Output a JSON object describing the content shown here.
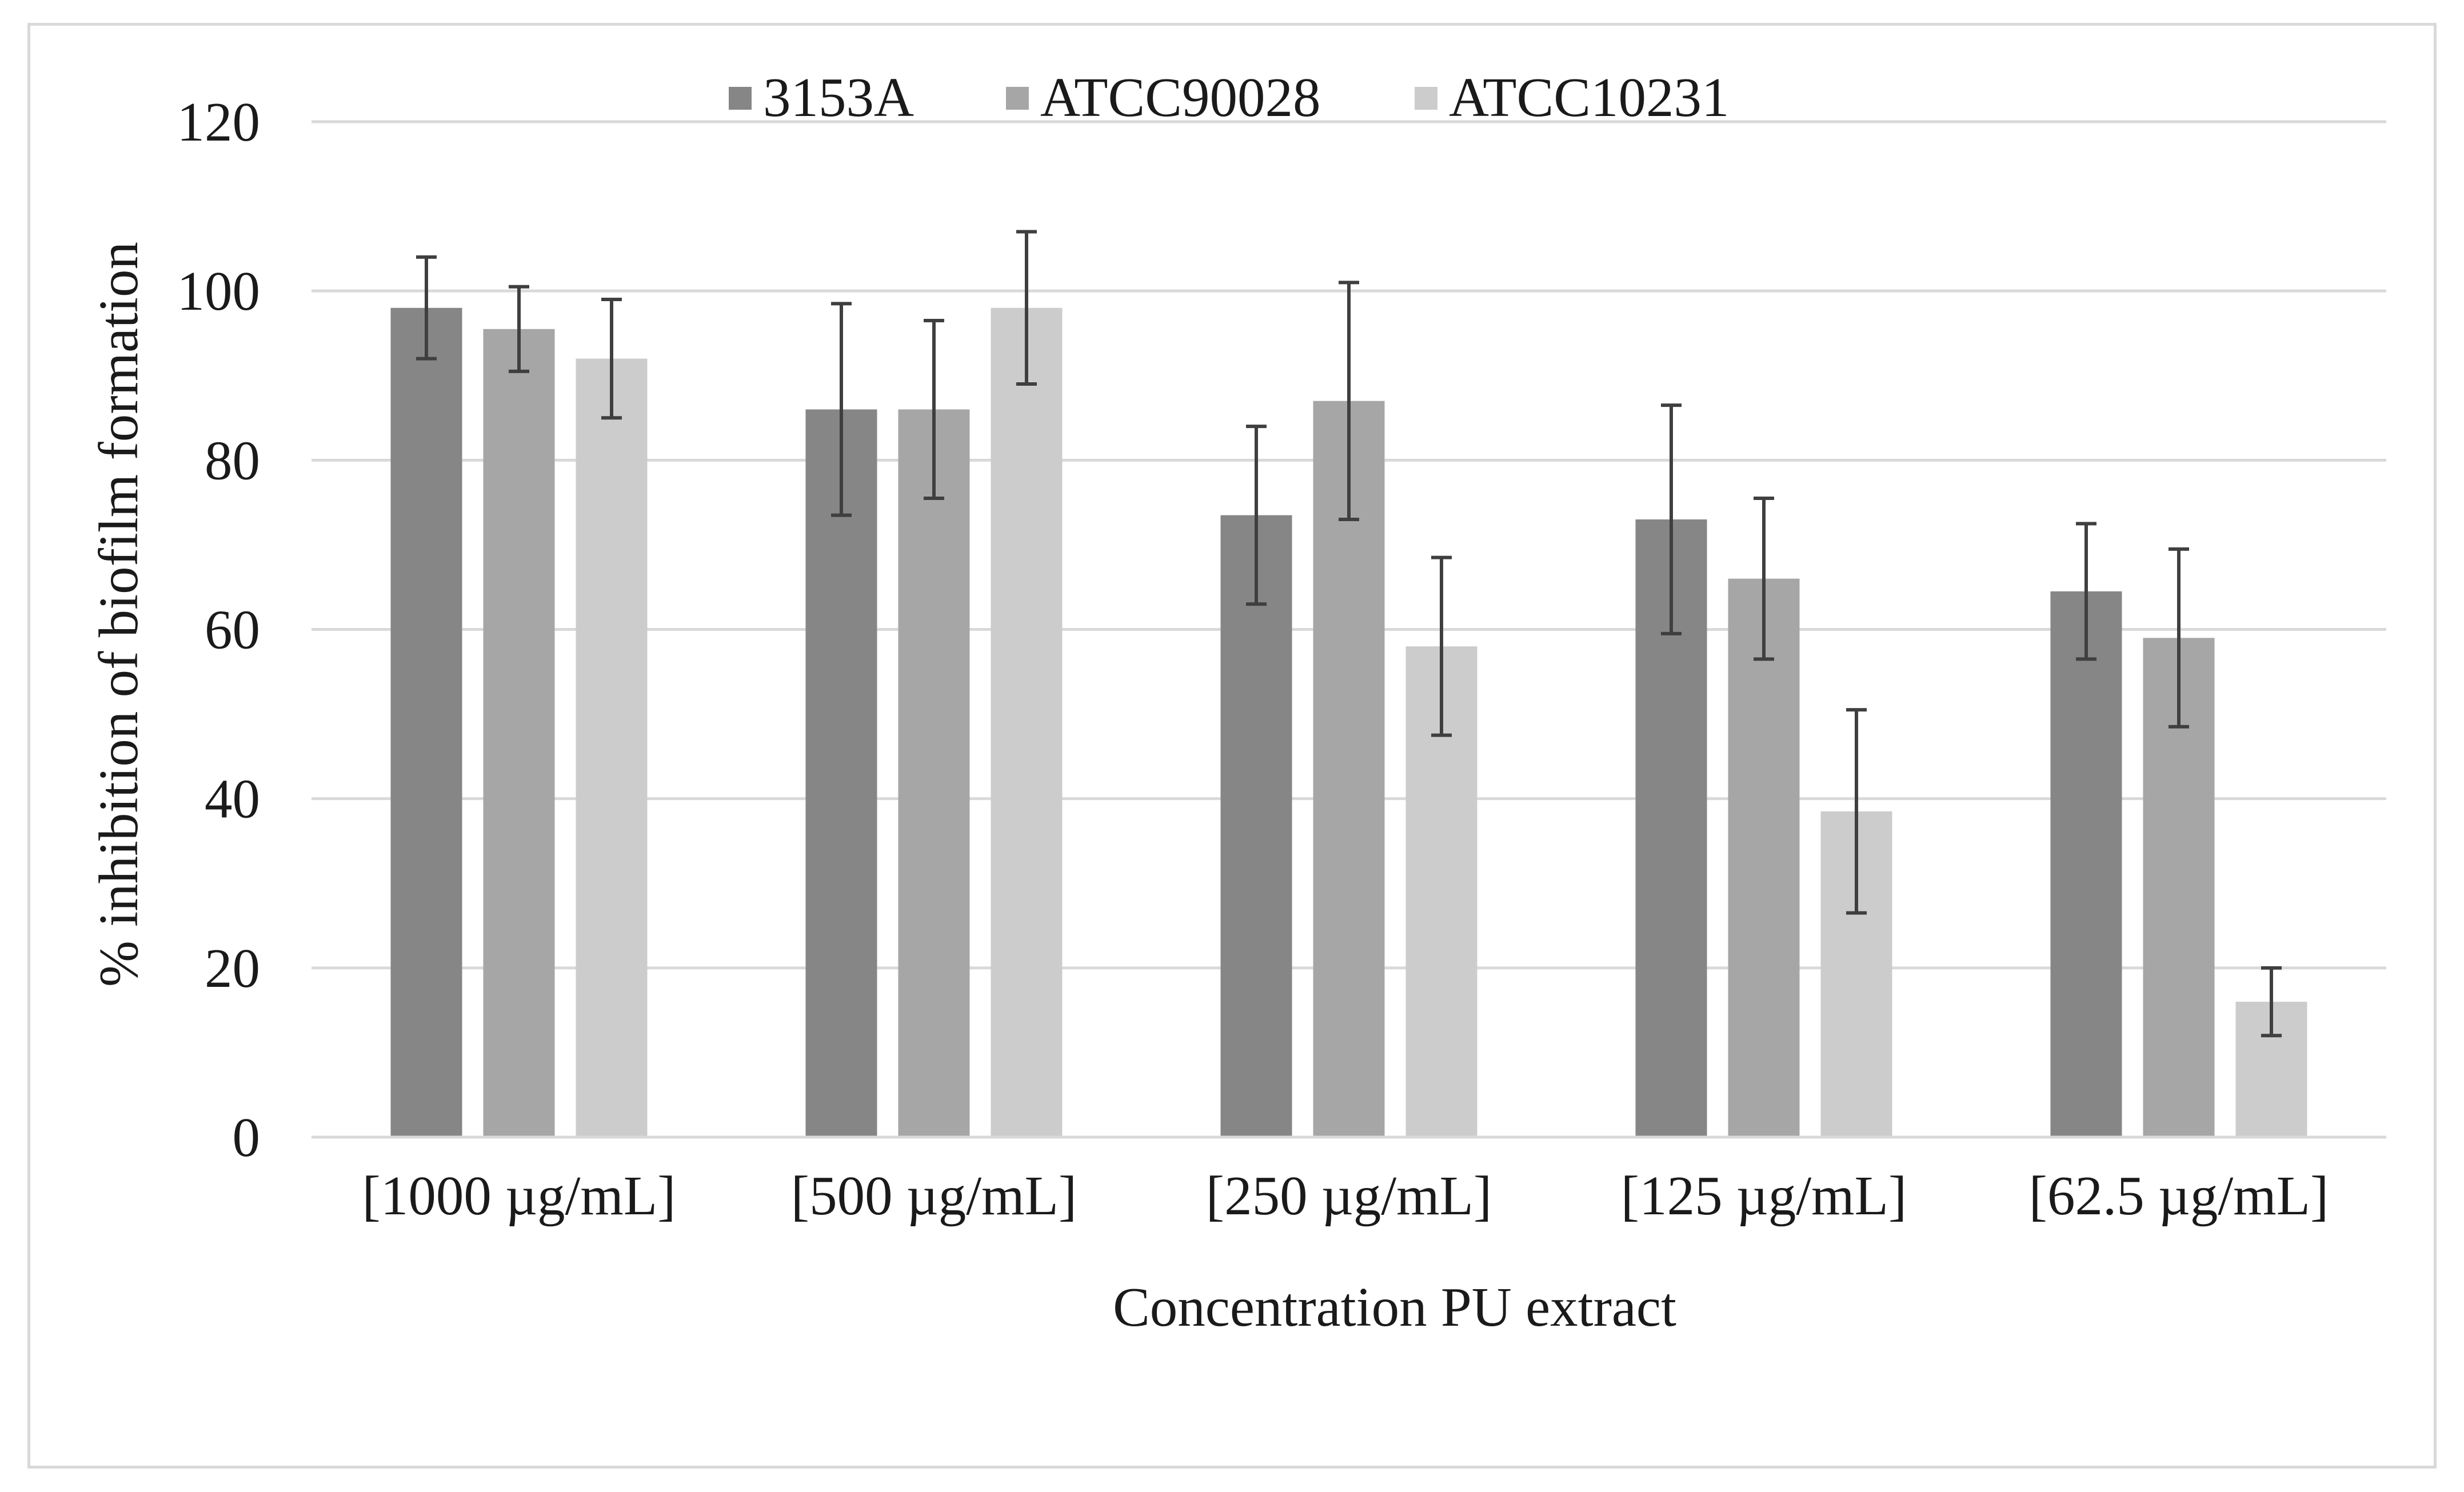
{
  "chart_data": {
    "type": "bar",
    "title": "",
    "xlabel": "Concentration PU extract",
    "ylabel": "% inhibition of biofilm formation",
    "ylim": [
      0,
      120
    ],
    "yticks": [
      "0",
      "20",
      "40",
      "60",
      "80",
      "100",
      "120"
    ],
    "grid": true,
    "legend_position": "top",
    "categories": [
      "[1000 µg/mL]",
      "[500 µg/mL]",
      "[250 µg/mL]",
      "[125 µg/mL]",
      "[62.5 µg/mL]"
    ],
    "series": [
      {
        "name": "3153A",
        "color": "#868686",
        "values": [
          98,
          86,
          73.5,
          73,
          64.5
        ],
        "errors": [
          6,
          12.5,
          10.5,
          13.5,
          8
        ]
      },
      {
        "name": "ATCC90028",
        "color": "#a6a6a6",
        "values": [
          95.5,
          86,
          87,
          66,
          59
        ],
        "errors": [
          5,
          10.5,
          14,
          9.5,
          10.5
        ]
      },
      {
        "name": "ATCC10231",
        "color": "#cccccc",
        "values": [
          92,
          98,
          58,
          38.5,
          16
        ],
        "errors": [
          7,
          9,
          10.5,
          12,
          4
        ]
      }
    ]
  }
}
